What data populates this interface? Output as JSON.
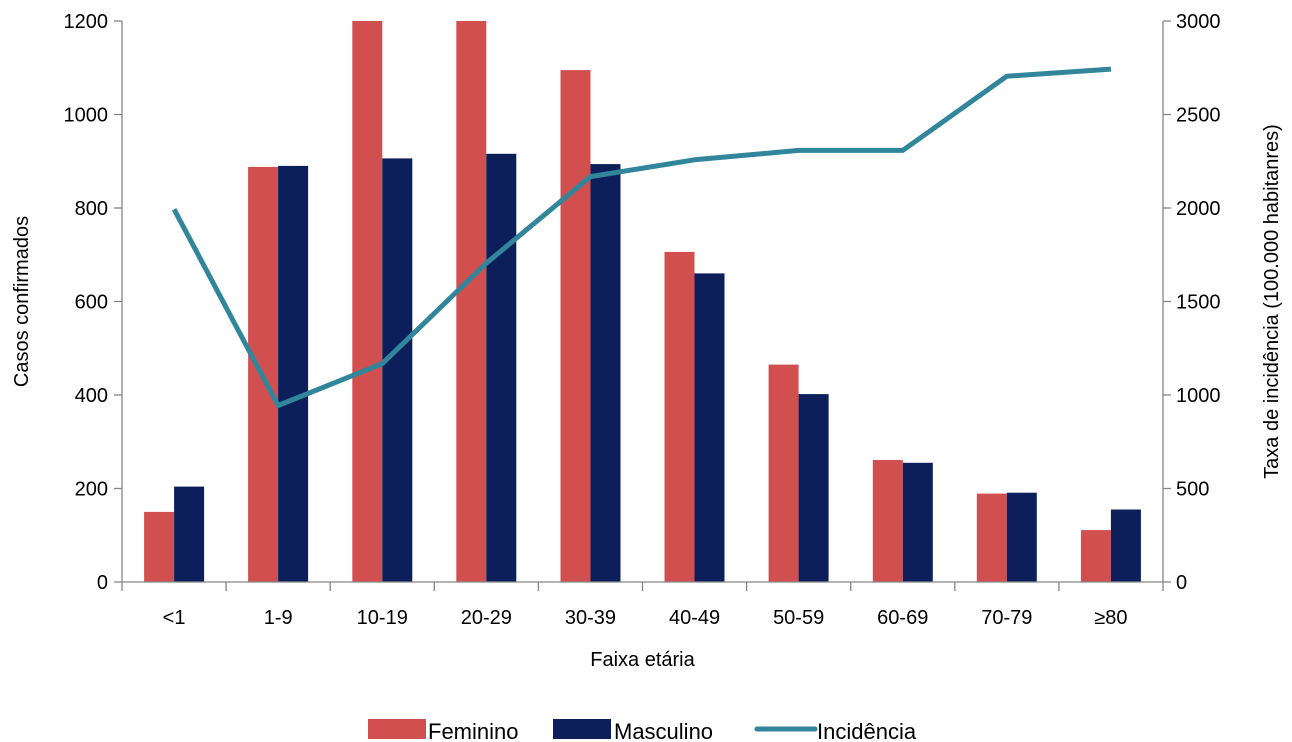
{
  "chart_data": {
    "type": "bar",
    "categories": [
      "<1",
      "1-9",
      "10-19",
      "20-29",
      "30-39",
      "40-49",
      "50-59",
      "60-69",
      "70-79",
      "≥80"
    ],
    "series": [
      {
        "name": "Feminino",
        "type": "bar",
        "axis": "left",
        "color": "#D24F4F",
        "values": [
          150,
          888,
          1200,
          1200,
          1095,
          706,
          465,
          261,
          189,
          111
        ]
      },
      {
        "name": "Masculino",
        "type": "bar",
        "axis": "left",
        "color": "#0C1F5B",
        "values": [
          204,
          890,
          906,
          916,
          894,
          660,
          402,
          255,
          191,
          155
        ]
      },
      {
        "name": "Incidência",
        "type": "line",
        "axis": "right",
        "color": "#31869B",
        "values": [
          1993,
          944,
          1168,
          1705,
          2168,
          2258,
          2308,
          2308,
          2705,
          2743
        ]
      }
    ],
    "xlabel": "Faixa etária",
    "ylabel": "Casos confirmados",
    "y2label": "Taxa de incidência (100.000 habitanres)",
    "ylim": [
      0,
      1200
    ],
    "y2lim": [
      0,
      3000
    ],
    "yticks": [
      0,
      200,
      400,
      600,
      800,
      1000,
      1200
    ],
    "y2ticks": [
      0,
      500,
      1000,
      1500,
      2000,
      2500,
      3000
    ],
    "grid": false,
    "legend_position": "bottom"
  }
}
